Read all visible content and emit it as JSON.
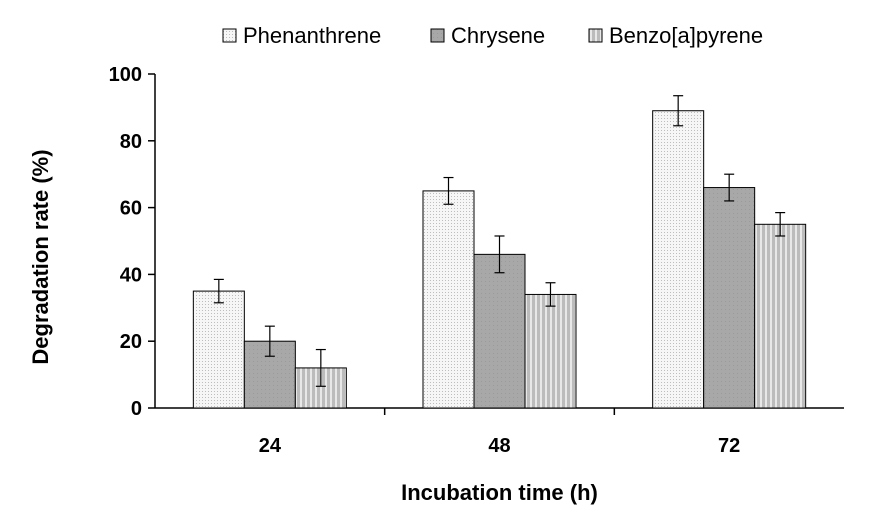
{
  "chart_data": {
    "type": "bar",
    "xlabel": "Incubation time (h)",
    "ylabel": "Degradation rate (%)",
    "categories": [
      "24",
      "48",
      "72"
    ],
    "ylim": [
      0,
      100
    ],
    "yticks": [
      "0",
      "20",
      "40",
      "60",
      "80",
      "100"
    ],
    "grid": false,
    "legend_position": "top",
    "series": [
      {
        "name": "Phenanthrene",
        "values": [
          35,
          65,
          89
        ],
        "errors": [
          3.5,
          4,
          4.5
        ],
        "color": "#f4f4f4",
        "pattern": "dots"
      },
      {
        "name": "Chrysene",
        "values": [
          20,
          46,
          66
        ],
        "errors": [
          4.5,
          5.5,
          4
        ],
        "color": "#a8a8a8",
        "pattern": "solid"
      },
      {
        "name": "Benzo[a]pyrene",
        "values": [
          12,
          34,
          55
        ],
        "errors": [
          5.5,
          3.5,
          3.5
        ],
        "color": "#c4c4c4",
        "pattern": "vertical-lines"
      }
    ]
  }
}
